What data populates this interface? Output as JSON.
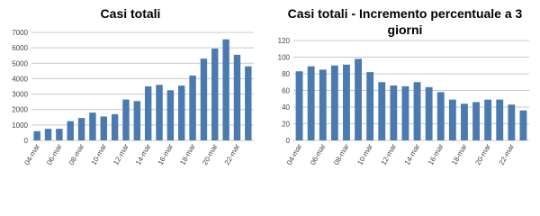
{
  "chart_data": [
    {
      "type": "bar",
      "title": "Casi totali",
      "categories": [
        "04-mar",
        null,
        "06-mar",
        null,
        "08-mar",
        null,
        "10-mar",
        null,
        "12-mar",
        null,
        "14-mar",
        null,
        "16-mar",
        null,
        "18-mar",
        null,
        "20-mar",
        null,
        "22-mar",
        null
      ],
      "values": [
        600,
        750,
        750,
        1250,
        1450,
        1800,
        1550,
        1700,
        2650,
        2550,
        3500,
        3600,
        3250,
        3550,
        4200,
        5300,
        5950,
        6550,
        5550,
        4800
      ],
      "color": "#4a7ab0",
      "ylim": [
        0,
        7000
      ],
      "yticks": [
        0,
        1000,
        2000,
        3000,
        4000,
        5000,
        6000,
        7000
      ],
      "grid": true
    },
    {
      "type": "bar",
      "title": "Casi totali - Incremento percentuale a 3 giorni",
      "categories": [
        "04-mar",
        null,
        "06-mar",
        null,
        "08-mar",
        null,
        "10-mar",
        null,
        "12-mar",
        null,
        "14-mar",
        null,
        "16-mar",
        null,
        "18-mar",
        null,
        "20-mar",
        null,
        "22-mar",
        null
      ],
      "values": [
        83,
        89,
        85,
        90,
        91,
        98,
        82,
        70,
        66,
        65,
        70,
        64,
        58,
        49,
        44,
        46,
        49,
        49,
        43,
        36
      ],
      "color": "#4a7ab0",
      "ylim": [
        0,
        120
      ],
      "yticks": [
        0,
        20,
        40,
        60,
        80,
        100,
        120
      ],
      "grid": true
    }
  ]
}
